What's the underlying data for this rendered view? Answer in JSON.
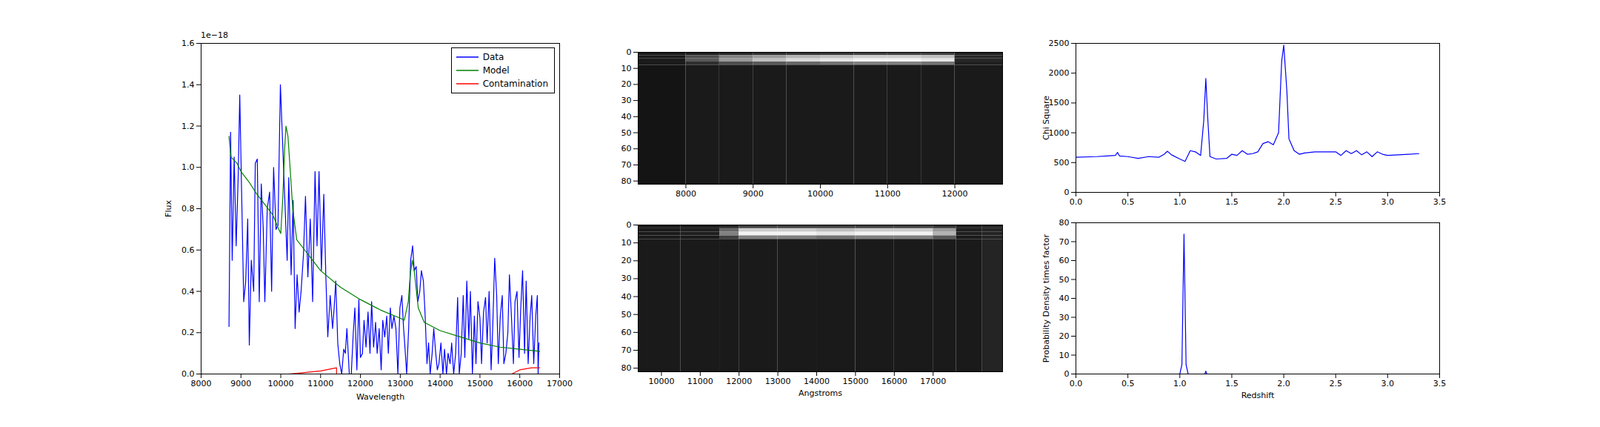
{
  "chart_data": [
    {
      "type": "line",
      "xlabel": "Wavelength",
      "ylabel": "Flux",
      "annotations": [
        "1e−18"
      ],
      "xlim": [
        8000,
        17000
      ],
      "xticks": [
        8000,
        9000,
        10000,
        11000,
        12000,
        13000,
        14000,
        15000,
        16000,
        17000
      ],
      "ylim": [
        0,
        1.6
      ],
      "yticks": [
        {
          "value": 0,
          "label": "0.0"
        },
        0.2,
        0.4,
        0.6,
        0.8,
        {
          "value": 1,
          "label": "1.0"
        },
        1.2,
        1.4,
        1.6
      ],
      "legend": "upper right",
      "series": [
        {
          "name": "Data",
          "color": "#0000ff",
          "x": [
            8700,
            8740,
            8780,
            8830,
            8880,
            8930,
            8970,
            9030,
            9070,
            9120,
            9170,
            9210,
            9260,
            9320,
            9360,
            9410,
            9460,
            9510,
            9560,
            9600,
            9660,
            9720,
            9770,
            9820,
            9880,
            9930,
            9990,
            10050,
            10110,
            10160,
            10200,
            10260,
            10310,
            10360,
            10410,
            10460,
            10510,
            10570,
            10620,
            10680,
            10740,
            10800,
            10860,
            10910,
            10960,
            11020,
            11080,
            11130,
            11180,
            11240,
            11300,
            11340,
            11380,
            11430,
            11480,
            11530,
            11580,
            11620,
            11660,
            11720,
            11770,
            11820,
            11860,
            11910,
            11960,
            12000,
            12050,
            12090,
            12140,
            12190,
            12240,
            12280,
            12330,
            12380,
            12420,
            12470,
            12520,
            12560,
            12610,
            12660,
            12700,
            12750,
            12790,
            12840,
            12890,
            12940,
            12990,
            13040,
            13080,
            13120,
            13160,
            13210,
            13260,
            13310,
            13350,
            13400,
            13440,
            13490,
            13530,
            13580,
            13620,
            13670,
            13710,
            13750,
            13800,
            13840,
            13890,
            13930,
            13970,
            14020,
            14070,
            14110,
            14160,
            14200,
            14250,
            14290,
            14340,
            14390,
            14440,
            14480,
            14530,
            14580,
            14620,
            14670,
            14720,
            14760,
            14810,
            14860,
            14900,
            14950,
            15000,
            15040,
            15090,
            15140,
            15180,
            15230,
            15280,
            15320,
            15370,
            15420,
            15460,
            15510,
            15560,
            15600,
            15650,
            15700,
            15740,
            15790,
            15840,
            15880,
            15930,
            15980,
            16020,
            16070,
            16120,
            16160,
            16210,
            16260,
            16300,
            16350,
            16400,
            16440,
            16460,
            16480
          ],
          "values": [
            0.23,
            1.17,
            0.55,
            1.05,
            0.62,
            0.95,
            1.35,
            0.75,
            0.35,
            0.45,
            0.75,
            0.14,
            0.55,
            0.4,
            1.02,
            1.04,
            0.35,
            0.92,
            0.7,
            0.35,
            0.8,
            0.88,
            0.4,
            1.0,
            0.7,
            0.72,
            1.4,
            1.1,
            0.8,
            0.55,
            0.95,
            0.48,
            0.84,
            0.22,
            0.48,
            0.3,
            0.4,
            0.58,
            0.86,
            0.47,
            0.75,
            0.35,
            0.98,
            0.62,
            0.98,
            0.5,
            0.87,
            0.48,
            0.18,
            0.38,
            0.22,
            0.32,
            0.45,
            0.15,
            0.05,
            0,
            0.12,
            0.1,
            0.22,
            0,
            0,
            0.2,
            0.32,
            0.02,
            0.36,
            0.08,
            0.1,
            0.26,
            0.13,
            0.3,
            0.1,
            0.35,
            0.13,
            0.25,
            0.1,
            0.22,
            0.02,
            0.26,
            0.18,
            0.28,
            0.1,
            0.32,
            0.22,
            0.28,
            0.22,
            0,
            0.32,
            0.38,
            0.23,
            0.12,
            0,
            0.22,
            0.55,
            0.62,
            0.5,
            0.52,
            0.35,
            0.4,
            0.5,
            0.45,
            0.3,
            0.05,
            0.15,
            0,
            0.1,
            0.22,
            0.1,
            0.02,
            0.05,
            0.15,
            0,
            0.12,
            0,
            0.1,
            0.05,
            0.15,
            0,
            0.1,
            0.37,
            0,
            0.1,
            0.38,
            0.08,
            0.45,
            0.17,
            0.4,
            0,
            0.28,
            0.05,
            0.35,
            0.27,
            0.05,
            0.3,
            0.37,
            0.15,
            0.4,
            0.02,
            0.22,
            0.56,
            0.38,
            0.05,
            0.28,
            0.38,
            0.05,
            0.1,
            0.2,
            0.48,
            0.28,
            0.05,
            0.35,
            0.4,
            0.08,
            0.3,
            0.5,
            0.1,
            0.45,
            0.05,
            0.28,
            0.38,
            0.05,
            0.28,
            0.38,
            0,
            0.15
          ]
        },
        {
          "name": "Model",
          "color": "#008000",
          "x": [
            8700,
            8750,
            8800,
            8900,
            9000,
            9200,
            9400,
            9600,
            9800,
            9950,
            10000,
            10050,
            10100,
            10130,
            10180,
            10250,
            10300,
            10400,
            10600,
            10800,
            11000,
            11500,
            12000,
            12500,
            13000,
            13100,
            13200,
            13250,
            13300,
            13350,
            13450,
            13600,
            14000,
            14500,
            15000,
            15500,
            16000,
            16500
          ],
          "values": [
            1.15,
            1.05,
            1.04,
            1.02,
            0.98,
            0.93,
            0.87,
            0.82,
            0.77,
            0.7,
            0.68,
            0.85,
            1.1,
            1.2,
            1.15,
            0.95,
            0.8,
            0.65,
            0.6,
            0.55,
            0.5,
            0.42,
            0.36,
            0.31,
            0.27,
            0.26,
            0.35,
            0.48,
            0.55,
            0.5,
            0.32,
            0.25,
            0.21,
            0.18,
            0.15,
            0.13,
            0.12,
            0.11
          ]
        },
        {
          "name": "Contamination",
          "color": "#ff0000",
          "x": [
            8700,
            10200,
            10500,
            11000,
            11400,
            11400,
            15800,
            16000,
            16300,
            16500
          ],
          "values": [
            0,
            0,
            0.005,
            0.015,
            0.03,
            0,
            0,
            0.02,
            0.03,
            0.03
          ]
        }
      ]
    },
    {
      "type": "heatmap",
      "xlim": [
        7290,
        12710
      ],
      "xticks": [
        8000,
        9000,
        10000,
        11000,
        12000
      ],
      "ylim": [
        0,
        82
      ],
      "yticks": [
        0,
        10,
        20,
        30,
        40,
        50,
        60,
        70,
        80
      ],
      "color_range": [
        0,
        1
      ],
      "x_edges": [
        7290,
        8000,
        8500,
        9000,
        9500,
        10000,
        10500,
        11000,
        11500,
        12000,
        12710
      ],
      "y_edges": [
        0,
        2,
        4,
        6,
        8,
        82
      ],
      "values": [
        [
          0.1,
          0.12,
          0.15,
          0.18,
          0.2,
          0.22,
          0.25,
          0.25,
          0.25,
          0.12
        ],
        [
          0.1,
          0.3,
          0.5,
          0.6,
          0.7,
          0.75,
          0.8,
          0.8,
          0.75,
          0.15
        ],
        [
          0.1,
          0.35,
          0.6,
          0.75,
          0.85,
          0.9,
          0.95,
          0.95,
          0.9,
          0.15
        ],
        [
          0.1,
          0.18,
          0.3,
          0.35,
          0.4,
          0.45,
          0.5,
          0.5,
          0.45,
          0.12
        ],
        [
          0.08,
          0.1,
          0.1,
          0.1,
          0.1,
          0.1,
          0.1,
          0.1,
          0.1,
          0.1
        ]
      ]
    },
    {
      "type": "heatmap",
      "xlabel": "Angstroms",
      "xlim": [
        9400,
        18790
      ],
      "xticks": [
        10000,
        11000,
        12000,
        13000,
        14000,
        15000,
        16000,
        17000
      ],
      "ylim": [
        0,
        82
      ],
      "yticks": [
        0,
        10,
        20,
        30,
        40,
        50,
        60,
        70,
        80
      ],
      "color_range": [
        0,
        1
      ],
      "x_edges": [
        9400,
        10500,
        11500,
        12000,
        13000,
        14000,
        15000,
        16000,
        17000,
        17600,
        18260,
        18790
      ],
      "y_edges": [
        0,
        2,
        4,
        6,
        8,
        82
      ],
      "values": [
        [
          0.1,
          0.1,
          0.15,
          0.25,
          0.25,
          0.25,
          0.25,
          0.25,
          0.2,
          0.12,
          0.14
        ],
        [
          0.1,
          0.12,
          0.4,
          0.8,
          0.8,
          0.75,
          0.8,
          0.8,
          0.6,
          0.12,
          0.14
        ],
        [
          0.1,
          0.12,
          0.5,
          0.95,
          0.95,
          0.9,
          0.95,
          0.95,
          0.7,
          0.12,
          0.14
        ],
        [
          0.1,
          0.1,
          0.25,
          0.5,
          0.5,
          0.45,
          0.5,
          0.5,
          0.35,
          0.1,
          0.14
        ],
        [
          0.1,
          0.1,
          0.1,
          0.1,
          0.1,
          0.1,
          0.1,
          0.1,
          0.1,
          0.1,
          0.14
        ]
      ]
    },
    {
      "type": "line",
      "ylabel": "Chi Square",
      "xlim": [
        0,
        3.5
      ],
      "xticks": [
        {
          "value": 0,
          "label": "0.0"
        },
        0.5,
        {
          "value": 1,
          "label": "1.0"
        },
        1.5,
        {
          "value": 2,
          "label": "2.0"
        },
        2.5,
        {
          "value": 3,
          "label": "3.0"
        },
        3.5
      ],
      "ylim": [
        0,
        2500
      ],
      "yticks": [
        0,
        500,
        1000,
        1500,
        2000,
        2500
      ],
      "series": [
        {
          "color": "#0000ff",
          "x": [
            0,
            0.2,
            0.3,
            0.38,
            0.4,
            0.42,
            0.5,
            0.6,
            0.7,
            0.8,
            0.85,
            0.88,
            0.92,
            1.0,
            1.05,
            1.1,
            1.15,
            1.2,
            1.23,
            1.25,
            1.27,
            1.29,
            1.35,
            1.45,
            1.5,
            1.55,
            1.6,
            1.65,
            1.7,
            1.75,
            1.8,
            1.85,
            1.9,
            1.95,
            1.98,
            2.0,
            2.03,
            2.05,
            2.1,
            2.15,
            2.2,
            2.3,
            2.5,
            2.55,
            2.6,
            2.65,
            2.7,
            2.75,
            2.8,
            2.85,
            2.9,
            2.95,
            3.0,
            3.1,
            3.2,
            3.3
          ],
          "values": [
            590,
            600,
            610,
            620,
            670,
            610,
            600,
            570,
            600,
            590,
            640,
            690,
            630,
            560,
            520,
            700,
            680,
            620,
            1200,
            1910,
            1200,
            600,
            560,
            570,
            640,
            620,
            700,
            640,
            650,
            680,
            820,
            850,
            800,
            1000,
            2200,
            2470,
            1700,
            900,
            700,
            640,
            660,
            680,
            680,
            620,
            700,
            650,
            700,
            630,
            680,
            600,
            680,
            640,
            620,
            630,
            640,
            650
          ]
        }
      ]
    },
    {
      "type": "line",
      "xlabel": "Redshift",
      "ylabel": "Probability Density times factor",
      "xlim": [
        0,
        3.5
      ],
      "xticks": [
        {
          "value": 0,
          "label": "0.0"
        },
        0.5,
        {
          "value": 1,
          "label": "1.0"
        },
        1.5,
        {
          "value": 2,
          "label": "2.0"
        },
        2.5,
        {
          "value": 3,
          "label": "3.0"
        },
        3.5
      ],
      "ylim": [
        0,
        80
      ],
      "yticks": [
        0,
        10,
        20,
        30,
        40,
        50,
        60,
        70,
        80
      ],
      "series": [
        {
          "color": "#0000ff",
          "x": [
            0,
            1.0,
            1.02,
            1.03,
            1.04,
            1.05,
            1.06,
            1.08,
            1.24,
            1.25,
            1.26,
            3.3
          ],
          "values": [
            0,
            0,
            5,
            40,
            74,
            40,
            5,
            0,
            0,
            1.5,
            0,
            0
          ]
        }
      ]
    }
  ]
}
